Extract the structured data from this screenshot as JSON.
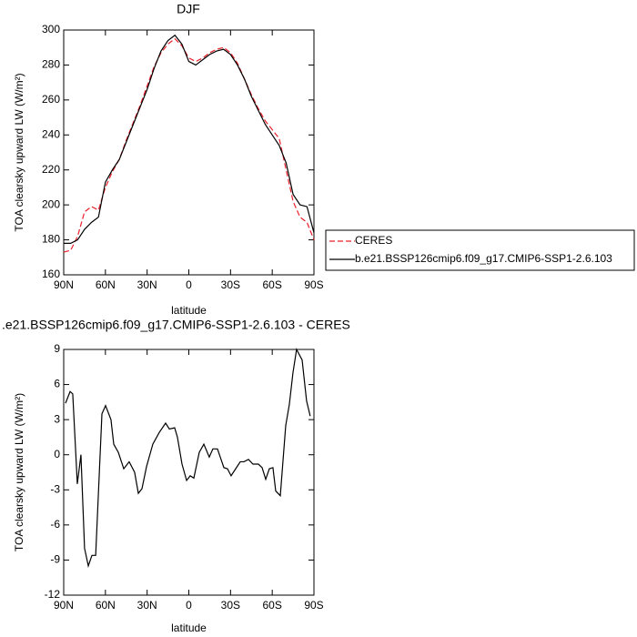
{
  "chart_data": [
    {
      "type": "line",
      "title": "DJF",
      "x_label": "latitude",
      "y_label": "TOA clearsky upward LW (W/m²)",
      "x": [
        90,
        85,
        80,
        75,
        70,
        65,
        60,
        55,
        50,
        45,
        40,
        35,
        30,
        25,
        20,
        15,
        10,
        5,
        0,
        -5,
        -10,
        -15,
        -20,
        -25,
        -30,
        -35,
        -40,
        -45,
        -50,
        -55,
        -60,
        -65,
        -70,
        -75,
        -80,
        -85,
        -90
      ],
      "series": [
        {
          "name": "CERES",
          "color": "#e8202a",
          "dash": true,
          "values": [
            173,
            174,
            182,
            196,
            199,
            197,
            210,
            219,
            226,
            237,
            247,
            257,
            268,
            279,
            287,
            292,
            295,
            291,
            284,
            282,
            284,
            287,
            289,
            290,
            287,
            281,
            272,
            263,
            255,
            248,
            243,
            238,
            220,
            202,
            193,
            190,
            180
          ]
        },
        {
          "name": "b.e21.BSSP126cmip6.f09_g17.CMIP6-SSP1-2.6.103",
          "color": "#000000",
          "dash": false,
          "values": [
            178,
            178,
            180,
            186,
            190,
            193,
            213,
            220,
            226,
            236,
            246,
            256,
            266,
            278,
            288,
            294,
            297,
            292,
            282,
            280,
            283,
            286,
            288,
            289,
            286,
            280,
            272,
            262,
            254,
            246,
            240,
            234,
            224,
            206,
            200,
            199,
            184
          ]
        }
      ],
      "xlim": [
        90,
        -90
      ],
      "xticks": [
        {
          "value": 90,
          "label": "90N"
        },
        {
          "value": 60,
          "label": "60N"
        },
        {
          "value": 30,
          "label": "30N"
        },
        0,
        {
          "value": -30,
          "label": "30S"
        },
        {
          "value": -60,
          "label": "60S"
        },
        {
          "value": -90,
          "label": "90S"
        }
      ],
      "ylim": [
        160,
        300
      ],
      "yticks": [
        160,
        180,
        200,
        220,
        240,
        260,
        280,
        300
      ],
      "legend_position": "right"
    },
    {
      "type": "line",
      "title": ".e21.BSSP126cmip6.f09_g17.CMIP6-SSP1-2.6.103 - CERES",
      "x_label": "latitude",
      "y_label": "TOA clearsky upward LW (W/m²)",
      "x": [
        88.7,
        85.4,
        83.5,
        80.2,
        77.6,
        75,
        72.3,
        69.7,
        67,
        62.5,
        59.9,
        56,
        54,
        50.7,
        46.8,
        42.9,
        39,
        36.3,
        33.7,
        30.4,
        25.9,
        21.3,
        16.7,
        14,
        10.2,
        8.2,
        4.9,
        1.6,
        -1,
        -3.6,
        -7.5,
        -10.8,
        -14.7,
        -17.3,
        -20.6,
        -25.2,
        -27.8,
        -30.4,
        -33.7,
        -37,
        -39.6,
        -42.9,
        -46.1,
        -50,
        -52.7,
        -55.3,
        -57.9,
        -60.5,
        -62.5,
        -65.8,
        -69.7,
        -72.3,
        -74.9,
        -77.5,
        -81.5,
        -84.7,
        -87.3
      ],
      "series": [
        {
          "color": "#000000",
          "dash": false,
          "values": [
            4.4,
            5.4,
            5.2,
            -2.5,
            0,
            -8.0,
            -9.5,
            -8.6,
            -8.6,
            3.5,
            4.2,
            3.0,
            0.9,
            0.2,
            -1.2,
            -0.6,
            -1.5,
            -3.3,
            -2.9,
            -1.0,
            0.9,
            1.9,
            2.7,
            2.2,
            2.3,
            1.5,
            -0.8,
            -2.2,
            -1.8,
            -2.0,
            0.2,
            0.9,
            -0.2,
            0.5,
            0.5,
            -1.1,
            -1.2,
            -1.8,
            -1.2,
            -0.6,
            -0.6,
            -0.4,
            -0.8,
            -0.8,
            -1.1,
            -2.1,
            -1.2,
            -1.1,
            -3.1,
            -3.5,
            2.5,
            4.3,
            7.0,
            9.0,
            8.1,
            4.6,
            3.3
          ]
        }
      ],
      "xlim": [
        90,
        -90
      ],
      "xticks": [
        {
          "value": 90,
          "label": "90N"
        },
        {
          "value": 60,
          "label": "60N"
        },
        {
          "value": 30,
          "label": "30N"
        },
        0,
        {
          "value": -30,
          "label": "30S"
        },
        {
          "value": -60,
          "label": "60S"
        },
        {
          "value": -90,
          "label": "90S"
        }
      ],
      "ylim": [
        -12,
        9
      ],
      "yticks": [
        -12,
        -9,
        -6,
        -3,
        0,
        3,
        6,
        9
      ]
    }
  ]
}
